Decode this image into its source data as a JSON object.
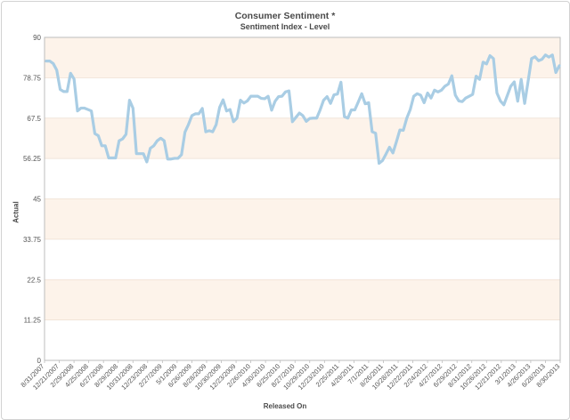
{
  "chart_data": {
    "type": "line",
    "title": "Consumer Sentiment *",
    "subtitle": "Sentiment Index - Level",
    "xlabel": "Released On",
    "ylabel": "Actual",
    "ylim": [
      0,
      90
    ],
    "yticks": [
      "0",
      "11.25",
      "22.5",
      "33.75",
      "45",
      "56.25",
      "67.5",
      "78.75",
      "90"
    ],
    "xticks": [
      "8/31/2007",
      "12/21/2007",
      "2/29/2008",
      "4/25/2008",
      "6/27/2008",
      "8/29/2008",
      "10/31/2008",
      "12/23/2008",
      "2/27/2009",
      "5/1/2009",
      "6/26/2009",
      "8/28/2009",
      "10/30/2009",
      "12/23/2009",
      "2/26/2010",
      "4/30/2010",
      "6/25/2010",
      "8/27/2010",
      "10/29/2010",
      "12/23/2010",
      "2/25/2011",
      "4/29/2011",
      "7/1/2011",
      "8/26/2011",
      "10/28/2011",
      "12/22/2011",
      "2/24/2012",
      "4/27/2012",
      "6/29/2012",
      "8/31/2012",
      "10/26/2012",
      "12/21/2012",
      "3/1/2013",
      "4/26/2013",
      "6/28/2013",
      "8/30/2013"
    ],
    "grid": true,
    "legend": "none",
    "line_color": "#a9cde4",
    "band_color": "#fdf3ea",
    "series": [
      {
        "values": [
          83.4,
          83.4,
          82.7,
          80.9,
          75.5,
          74.9,
          74.9,
          80.0,
          78.4,
          69.5,
          70.3,
          70.3,
          69.9,
          69.5,
          63.2,
          62.6,
          59.8,
          59.8,
          56.4,
          56.4,
          56.4,
          61.2,
          61.7,
          63.0,
          72.5,
          70.3,
          57.6,
          57.6,
          57.6,
          55.3,
          59.1,
          59.8,
          61.2,
          61.9,
          61.2,
          56.1,
          56.1,
          56.3,
          56.3,
          57.3,
          63.6,
          65.7,
          68.2,
          68.7,
          68.7,
          70.2,
          63.7,
          64.0,
          63.7,
          65.7,
          70.5,
          72.6,
          69.5,
          69.9,
          66.5,
          67.5,
          72.5,
          71.7,
          72.3,
          73.6,
          73.6,
          73.6,
          73.0,
          72.9,
          73.6,
          69.7,
          72.2,
          73.5,
          73.6,
          74.8,
          75.1,
          66.5,
          67.7,
          68.9,
          68.2,
          66.6,
          67.4,
          67.5,
          67.5,
          69.8,
          72.5,
          73.5,
          71.6,
          74.0,
          74.2,
          77.5,
          67.9,
          67.5,
          69.8,
          69.8,
          72.0,
          74.3,
          71.5,
          71.8,
          63.7,
          63.3,
          54.9,
          55.7,
          57.5,
          59.4,
          57.8,
          60.9,
          64.2,
          64.1,
          67.5,
          69.9,
          73.6,
          74.3,
          73.9,
          71.8,
          74.5,
          73.1,
          75.3,
          74.8,
          75.3,
          76.4,
          77.0,
          79.3,
          73.9,
          72.3,
          72.1,
          73.1,
          73.6,
          74.1,
          79.2,
          78.3,
          83.1,
          82.6,
          84.9,
          84.1,
          74.5,
          72.3,
          71.2,
          73.8,
          76.4,
          77.6,
          72.2,
          78.3,
          71.6,
          77.8,
          84.1,
          84.6,
          83.5,
          83.9,
          85.1,
          84.5,
          85.1,
          80.2,
          82.1
        ]
      }
    ]
  }
}
